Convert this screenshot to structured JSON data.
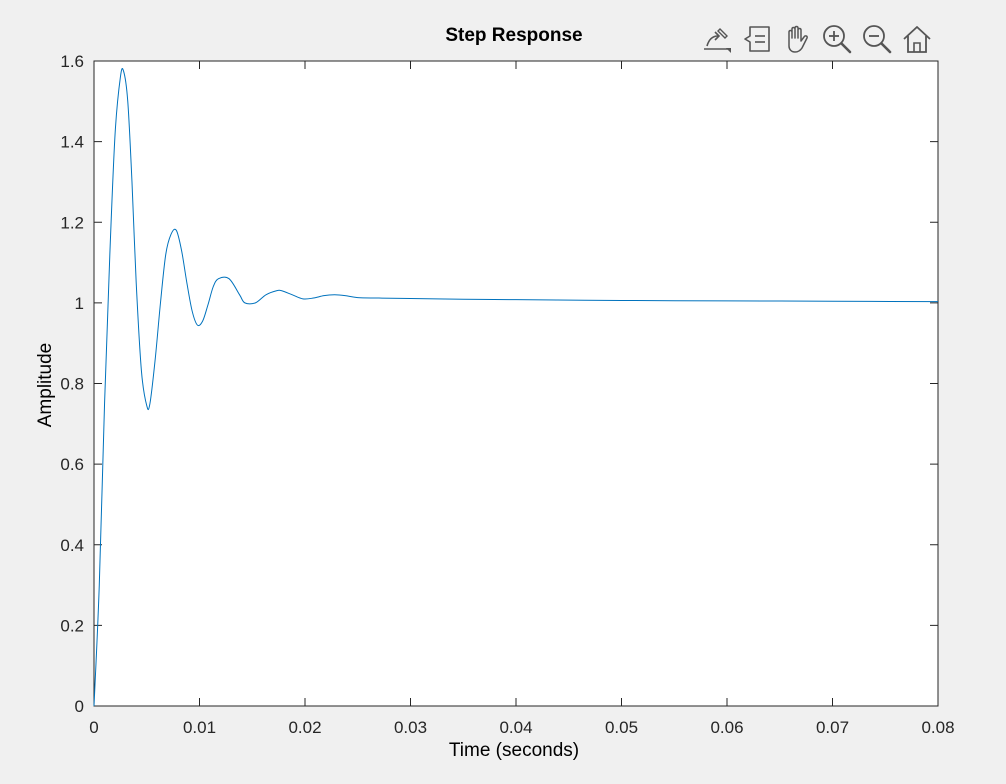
{
  "toolbar": {
    "icons": [
      "edit-plot-icon",
      "data-tips-icon",
      "pan-hand-icon",
      "zoom-in-icon",
      "zoom-out-icon",
      "home-restore-icon"
    ]
  },
  "chart_data": {
    "type": "line",
    "title": "Step Response",
    "xlabel": "Time (seconds)",
    "ylabel": "Amplitude",
    "xlim": [
      0,
      0.08
    ],
    "ylim": [
      0,
      1.6
    ],
    "xticks": [
      0,
      0.01,
      0.02,
      0.03,
      0.04,
      0.05,
      0.06,
      0.07,
      0.08
    ],
    "xtick_labels": [
      "0",
      "0.01",
      "0.02",
      "0.03",
      "0.04",
      "0.05",
      "0.06",
      "0.07",
      "0.08"
    ],
    "yticks": [
      0,
      0.2,
      0.4,
      0.6,
      0.8,
      1,
      1.2,
      1.4,
      1.6
    ],
    "ytick_labels": [
      "0",
      "0.2",
      "0.4",
      "0.6",
      "0.8",
      "1",
      "1.2",
      "1.4",
      "1.6"
    ],
    "grid": false,
    "line_color": "#0072bd",
    "series": [
      {
        "x": [
          0,
          0.0005,
          0.001,
          0.0015,
          0.002,
          0.0025,
          0.0028,
          0.0032,
          0.0036,
          0.004,
          0.0045,
          0.005,
          0.0053,
          0.0058,
          0.0063,
          0.0068,
          0.0073,
          0.0078,
          0.0083,
          0.0088,
          0.0093,
          0.0098,
          0.0103,
          0.0108,
          0.0113,
          0.0118,
          0.0128,
          0.0138,
          0.0143,
          0.0153,
          0.0163,
          0.0173,
          0.0178,
          0.0188,
          0.0198,
          0.0208,
          0.0218,
          0.0228,
          0.0238,
          0.025,
          0.027,
          0.03,
          0.035,
          0.04,
          0.05,
          0.06,
          0.07,
          0.08
        ],
        "y": [
          0,
          0.3,
          0.75,
          1.12,
          1.42,
          1.56,
          1.575,
          1.5,
          1.3,
          1.05,
          0.83,
          0.745,
          0.75,
          0.86,
          1.0,
          1.12,
          1.17,
          1.18,
          1.13,
          1.05,
          0.98,
          0.945,
          0.955,
          0.995,
          1.04,
          1.06,
          1.06,
          1.02,
          1.0,
          1.0,
          1.02,
          1.03,
          1.03,
          1.02,
          1.01,
          1.012,
          1.018,
          1.02,
          1.018,
          1.013,
          1.012,
          1.011,
          1.009,
          1.008,
          1.006,
          1.005,
          1.004,
          1.003
        ]
      }
    ]
  }
}
